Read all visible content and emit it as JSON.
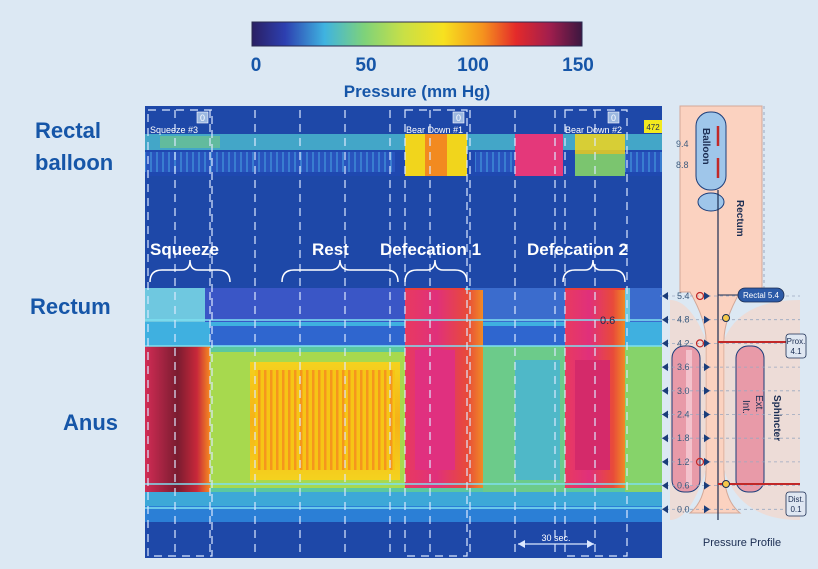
{
  "colorbar": {
    "ticks": [
      "0",
      "50",
      "100",
      "150"
    ],
    "title": "Pressure (mm Hg)"
  },
  "side_labels": {
    "rectal_balloon_line1": "Rectal",
    "rectal_balloon_line2": "balloon",
    "rectum": "Rectum",
    "anus": "Anus"
  },
  "strip": {
    "markers": [
      "Squeeze #3",
      "Bear Down #1",
      "Bear Down #2"
    ],
    "marker_badge": "0",
    "corner_badge": "472"
  },
  "segments": [
    "Squeeze",
    "Rest",
    "Defecation 1",
    "Defecation 2"
  ],
  "mid_value": "0.6",
  "time_scale": "30 sec.",
  "profile": {
    "balloon_label": "Balloon",
    "rectum_label": "Rectum",
    "sphincter_label": "Sphincter",
    "ext_label": "Ext.",
    "int_label": "Int.",
    "balloon_ticks": [
      "9.4",
      "8.8"
    ],
    "sensor_ticks": [
      "5.4",
      "4.8",
      "4.2",
      "3.6",
      "3.0",
      "2.4",
      "1.8",
      "1.2",
      "0.6",
      "0.0"
    ],
    "rectal_tag": "Rectal 5.4",
    "prox_tag": [
      "Prox.",
      "4.1"
    ],
    "dist_tag": [
      "Dist.",
      "0.1"
    ],
    "caption": "Pressure Profile"
  },
  "colors": {
    "low": "#1d3f9c",
    "high": "#e4387a",
    "accent": "#1656a8"
  }
}
